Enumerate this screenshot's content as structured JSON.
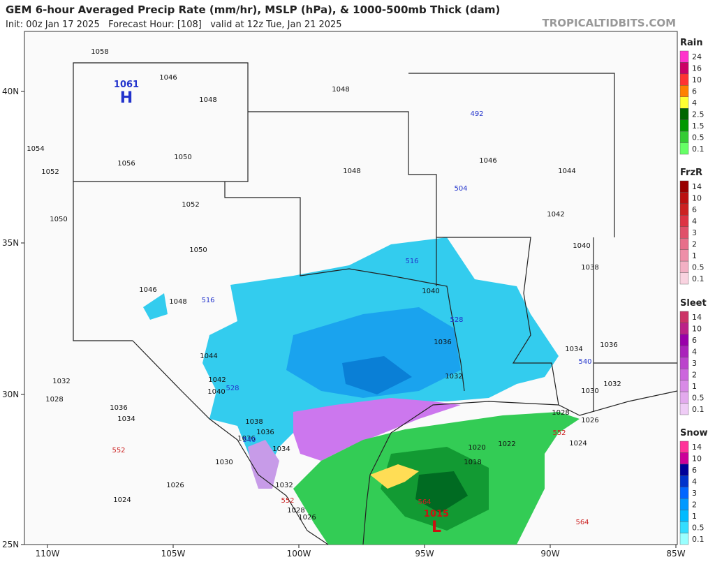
{
  "header": {
    "title": "GEM 6-hour Averaged Precip Rate (mm/hr), MSLP (hPa), & 1000-500mb Thick (dam)",
    "subtitle": "Init: 00z Jan 17 2025   Forecast Hour: [108]   valid at 12z Tue, Jan 21 2025",
    "watermark": "TROPICALTIDBITS.COM"
  },
  "axes": {
    "lat_labels": [
      "40N",
      "35N",
      "30N",
      "25N"
    ],
    "lon_labels": [
      "110W",
      "105W",
      "100W",
      "95W",
      "90W",
      "85W"
    ]
  },
  "legends": [
    {
      "title": "Rain",
      "labels": [
        24,
        16,
        10,
        6,
        4,
        2.5,
        1.5,
        0.5,
        0.1
      ],
      "colors": [
        "#ff33cc",
        "#cc0066",
        "#ff3333",
        "#ff8000",
        "#ffff33",
        "#006600",
        "#009900",
        "#33cc33",
        "#66ff66"
      ]
    },
    {
      "title": "FrzR",
      "labels": [
        14,
        10,
        6,
        4,
        3,
        2,
        1,
        0.5,
        0.1
      ],
      "colors": [
        "#990000",
        "#bb1111",
        "#cc2222",
        "#dd3344",
        "#e0506a",
        "#e76f8a",
        "#ee8fa8",
        "#f3b0c4",
        "#f9d3e0"
      ]
    },
    {
      "title": "Sleet",
      "labels": [
        14,
        10,
        6,
        4,
        3,
        2,
        1,
        0.5,
        0.1
      ],
      "colors": [
        "#cc3366",
        "#bb2288",
        "#9900aa",
        "#aa22bb",
        "#bb44cc",
        "#cc66dd",
        "#d88ae6",
        "#e3aaee",
        "#efccf6"
      ]
    },
    {
      "title": "Snow",
      "labels": [
        14,
        10,
        6,
        4,
        3,
        2,
        1,
        0.5,
        0.1
      ],
      "colors": [
        "#ff3399",
        "#cc0099",
        "#000099",
        "#0033cc",
        "#0066ff",
        "#0099ff",
        "#00bbff",
        "#33ddff",
        "#99ffff"
      ]
    }
  ],
  "contour_labels": [
    1058,
    1046,
    1048,
    1048,
    492,
    1054,
    1052,
    1056,
    1050,
    1048,
    1046,
    1044,
    504,
    1052,
    1042,
    1050,
    1050,
    1040,
    516,
    1038,
    1046,
    1048,
    516,
    1040,
    528,
    1036,
    1034,
    1036,
    1044,
    540,
    1042,
    528,
    1032,
    1040,
    1032,
    1032,
    1030,
    1028,
    1036,
    1034,
    1038,
    1028,
    1026,
    1036,
    1036,
    540,
    552,
    1024,
    552,
    1034,
    1020,
    1022,
    1030,
    1018,
    1032,
    1026,
    552,
    564,
    1024,
    1028,
    1026,
    564
  ],
  "pressure_centers": [
    {
      "value": 1061,
      "letter": "H"
    },
    {
      "value": 1015,
      "letter": "L"
    }
  ]
}
